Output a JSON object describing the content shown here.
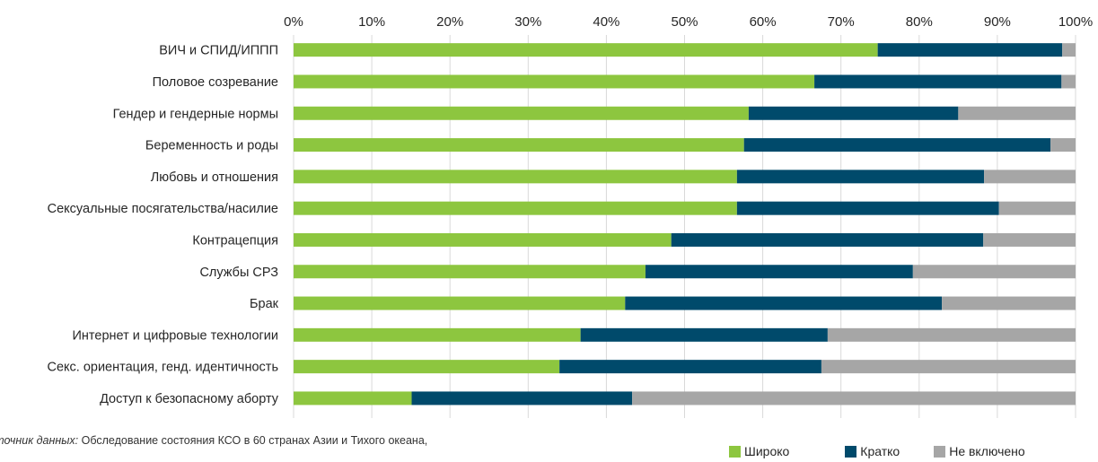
{
  "chart_data": {
    "type": "bar",
    "orientation": "horizontal",
    "stacked": "percent",
    "categories": [
      "ВИЧ и СПИД/ИППП",
      "Половое созревание",
      "Гендер и гендерные нормы",
      "Беременность и роды",
      "Любовь и отношения",
      "Сексуальные посягательства/насилие",
      "Контрацепция",
      "Службы СРЗ",
      "Брак",
      "Интернет и цифровые технологии",
      "Секс. ориентация, генд. идентичность",
      "Доступ к безопасному аборту"
    ],
    "series": [
      {
        "name": "Широко",
        "color": "#8dc63f",
        "values": [
          74.7,
          66.6,
          58.2,
          57.6,
          56.7,
          56.7,
          48.3,
          45.0,
          42.4,
          36.7,
          34.0,
          15.1
        ]
      },
      {
        "name": "Кратко",
        "color": "#004a6b",
        "values": [
          23.6,
          31.6,
          26.8,
          39.2,
          31.6,
          33.5,
          39.9,
          34.2,
          40.5,
          31.6,
          33.5,
          28.2
        ]
      },
      {
        "name": "Не включено",
        "color": "#a6a6a6",
        "values": [
          1.7,
          1.8,
          15.0,
          3.2,
          11.7,
          9.8,
          11.8,
          20.8,
          17.1,
          31.7,
          32.5,
          56.7
        ]
      }
    ],
    "xlim": [
      0,
      100
    ],
    "x_ticks": [
      "0%",
      "10%",
      "20%",
      "30%",
      "40%",
      "50%",
      "60%",
      "70%",
      "80%",
      "90%",
      "100%"
    ],
    "x_axis_position": "top",
    "grid": true,
    "legend_position": "bottom-right",
    "xlabel": "",
    "ylabel": ""
  },
  "source": {
    "label": "сточник данных:",
    "text": "Обследование состояния КСО в 60 странах Азии и Тихого океана,"
  }
}
